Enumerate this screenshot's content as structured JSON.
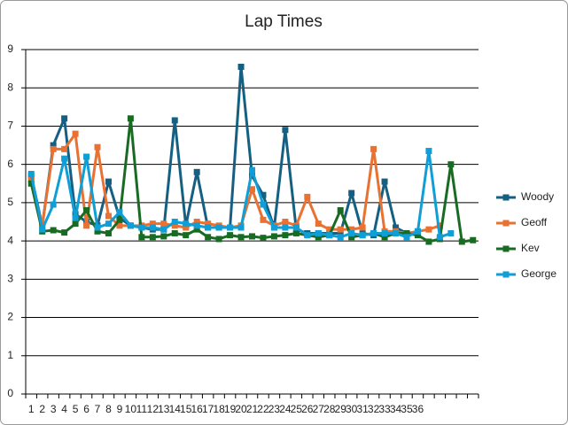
{
  "chart_data": {
    "type": "line",
    "title": "Lap Times",
    "categories": [
      "1",
      "2",
      "3",
      "4",
      "5",
      "6",
      "7",
      "8",
      "9",
      "10",
      "11",
      "12",
      "13",
      "14",
      "15",
      "16",
      "17",
      "18",
      "19",
      "20",
      "21",
      "22",
      "23",
      "24",
      "25",
      "26",
      "27",
      "28",
      "29",
      "30",
      "31",
      "32",
      "33",
      "34",
      "35",
      "36",
      null,
      null,
      null,
      null,
      null
    ],
    "series": [
      {
        "name": "Woody",
        "color": "#156082",
        "values": [
          5.7,
          4.4,
          6.5,
          7.2,
          4.7,
          4.5,
          4.4,
          5.55,
          4.6,
          4.4,
          4.35,
          4.3,
          4.3,
          7.15,
          4.4,
          5.8,
          4.35,
          4.35,
          4.35,
          8.55,
          5.7,
          5.2,
          4.35,
          6.9,
          4.3,
          4.2,
          4.2,
          4.2,
          4.2,
          5.25,
          4.2,
          4.15,
          5.55,
          4.35,
          4.2,
          4.2,
          null,
          null,
          null,
          null,
          null
        ]
      },
      {
        "name": "Geoff",
        "color": "#E97132",
        "values": [
          5.6,
          4.4,
          6.4,
          6.4,
          6.8,
          4.4,
          6.45,
          4.65,
          4.4,
          4.4,
          4.4,
          4.45,
          4.45,
          4.4,
          4.35,
          4.5,
          4.45,
          4.4,
          4.35,
          4.4,
          5.35,
          4.55,
          4.4,
          4.5,
          4.4,
          5.15,
          4.45,
          4.3,
          4.3,
          4.3,
          4.35,
          6.4,
          4.25,
          4.25,
          4.2,
          4.25,
          4.3,
          4.4,
          null,
          null,
          null
        ]
      },
      {
        "name": "Kev",
        "color": "#196B24",
        "values": [
          5.5,
          4.25,
          4.28,
          4.22,
          4.45,
          4.8,
          4.25,
          4.2,
          4.55,
          7.2,
          4.1,
          4.1,
          4.12,
          4.2,
          4.15,
          4.3,
          4.1,
          4.05,
          4.15,
          4.1,
          4.12,
          4.08,
          4.12,
          4.15,
          4.2,
          4.15,
          4.1,
          4.15,
          4.8,
          4.1,
          4.15,
          4.2,
          4.1,
          4.2,
          4.2,
          4.15,
          3.98,
          4.05,
          6.0,
          3.98,
          4.02
        ]
      },
      {
        "name": "George",
        "color": "#0F9ED5",
        "values": [
          5.75,
          4.3,
          4.95,
          6.15,
          4.6,
          6.2,
          4.35,
          4.45,
          4.75,
          4.4,
          4.35,
          4.35,
          4.3,
          4.5,
          4.45,
          4.4,
          4.35,
          4.35,
          4.35,
          4.35,
          5.85,
          4.95,
          4.35,
          4.35,
          4.35,
          4.15,
          4.2,
          4.15,
          4.1,
          4.2,
          4.15,
          4.2,
          4.2,
          4.2,
          4.1,
          4.25,
          6.35,
          4.1,
          4.2,
          null,
          null
        ]
      }
    ],
    "ylim": [
      0,
      9
    ],
    "yticks": [
      0,
      1,
      2,
      3,
      4,
      5,
      6,
      7,
      8,
      9
    ],
    "grid": true,
    "legend": "right"
  }
}
